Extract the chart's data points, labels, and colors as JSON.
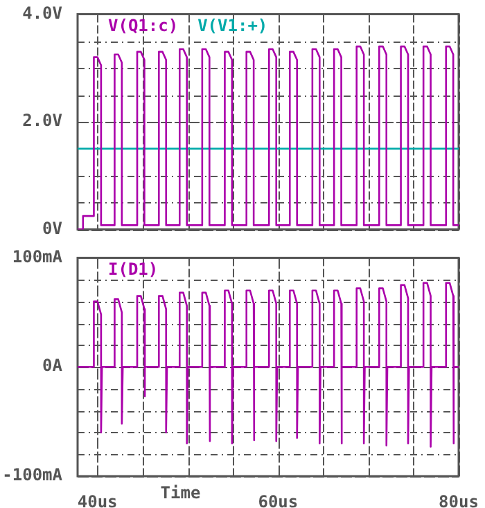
{
  "chart_data": [
    {
      "type": "line",
      "xlim": [
        37.8,
        80
      ],
      "xticks": [
        {
          "value": 40,
          "label": null
        },
        {
          "value": 45,
          "label": null
        },
        {
          "value": 50,
          "label": null
        },
        {
          "value": 55,
          "label": null
        },
        {
          "value": 60,
          "label": null
        },
        {
          "value": 65,
          "label": null
        },
        {
          "value": 70,
          "label": null
        },
        {
          "value": 75,
          "label": null
        },
        {
          "value": 80,
          "label": null
        }
      ],
      "ylim": [
        0,
        4
      ],
      "yticks": [
        {
          "value": 0,
          "label": "0V"
        },
        {
          "value": 0.5,
          "label": null
        },
        {
          "value": 1,
          "label": null
        },
        {
          "value": 1.5,
          "label": null
        },
        {
          "value": 2,
          "label": "2.0V"
        },
        {
          "value": 2.5,
          "label": null
        },
        {
          "value": 3,
          "label": null
        },
        {
          "value": 3.5,
          "label": null
        },
        {
          "value": 4,
          "label": "4.0V"
        }
      ],
      "grid": true,
      "legend": "top left",
      "tick_labels": "y",
      "line_style": "solid",
      "series": [
        {
          "name": "V(Q1:c)",
          "color": "#aa00aa",
          "x": [
            37.8,
            38.4,
            38.4,
            39.6,
            39.6,
            40.0,
            40.4,
            40.4,
            41.9,
            41.9,
            42.3,
            42.7,
            42.7,
            44.4,
            44.4,
            44.8,
            45.2,
            45.2,
            46.8,
            46.8,
            47.2,
            47.6,
            47.6,
            49.1,
            49.1,
            49.5,
            49.9,
            49.9,
            51.6,
            51.6,
            52.0,
            52.4,
            52.4,
            54.1,
            54.1,
            54.5,
            54.9,
            54.9,
            56.5,
            56.5,
            56.9,
            57.3,
            57.3,
            59.0,
            59.0,
            59.4,
            59.8,
            59.8,
            61.3,
            61.3,
            61.7,
            62.1,
            62.1,
            63.8,
            63.8,
            64.2,
            64.6,
            64.6,
            66.2,
            66.2,
            66.6,
            67.0,
            67.0,
            68.7,
            68.7,
            69.1,
            69.5,
            69.5,
            71.2,
            71.2,
            71.6,
            72.0,
            72.0,
            73.6,
            73.6,
            74.0,
            74.4,
            74.4,
            76.1,
            76.1,
            76.5,
            76.9,
            76.9,
            78.6,
            78.6,
            79.0,
            79.4,
            79.4,
            80
          ],
          "values": [
            0,
            0,
            0.25,
            0.25,
            3.2,
            3.2,
            3.05,
            0.08,
            0.08,
            3.25,
            3.25,
            3.1,
            0.08,
            0.08,
            3.3,
            3.3,
            3.15,
            0.08,
            0.08,
            3.3,
            3.3,
            3.15,
            0.08,
            0.08,
            3.35,
            3.35,
            3.2,
            0.08,
            0.08,
            3.35,
            3.35,
            3.2,
            0.08,
            0.08,
            3.3,
            3.3,
            3.15,
            0.08,
            0.08,
            3.3,
            3.3,
            3.15,
            0.08,
            0.08,
            3.35,
            3.35,
            3.2,
            0.08,
            0.08,
            3.3,
            3.3,
            3.15,
            0.08,
            0.08,
            3.35,
            3.35,
            3.2,
            0.08,
            0.08,
            3.35,
            3.35,
            3.2,
            0.08,
            0.08,
            3.4,
            3.4,
            3.25,
            0.08,
            0.08,
            3.4,
            3.4,
            3.25,
            0.08,
            0.08,
            3.4,
            3.4,
            3.25,
            0.08,
            0.08,
            3.4,
            3.4,
            3.25,
            0.08,
            0.08,
            3.4,
            3.4,
            3.25,
            0.08,
            0.08
          ]
        },
        {
          "name": "V(V1:+)",
          "color": "#00aaaa",
          "x": [
            37.8,
            80
          ],
          "values": [
            1.5,
            1.5
          ]
        }
      ]
    },
    {
      "type": "line",
      "xlabel": "Time",
      "xlim": [
        37.8,
        80
      ],
      "xticks": [
        {
          "value": 40,
          "label": "40us"
        },
        {
          "value": 45,
          "label": null
        },
        {
          "value": 50,
          "label": null
        },
        {
          "value": 55,
          "label": null
        },
        {
          "value": 60,
          "label": "60us"
        },
        {
          "value": 65,
          "label": null
        },
        {
          "value": 70,
          "label": null
        },
        {
          "value": 75,
          "label": null
        },
        {
          "value": 80,
          "label": "80us"
        }
      ],
      "ylim": [
        -100,
        100
      ],
      "yticks": [
        {
          "value": -100,
          "label": "-100mA"
        },
        {
          "value": -80,
          "label": null
        },
        {
          "value": -60,
          "label": null
        },
        {
          "value": -40,
          "label": null
        },
        {
          "value": -20,
          "label": null
        },
        {
          "value": 0,
          "label": "0A"
        },
        {
          "value": 20,
          "label": null
        },
        {
          "value": 40,
          "label": null
        },
        {
          "value": 60,
          "label": null
        },
        {
          "value": 80,
          "label": null
        },
        {
          "value": 100,
          "label": "100mA"
        }
      ],
      "grid": true,
      "legend": "top left",
      "line_style": "solid",
      "series": [
        {
          "name": "I(D1)",
          "color": "#aa00aa",
          "x": [
            37.8,
            39.6,
            39.6,
            40.0,
            40.4,
            40.4,
            40.5,
            41.9,
            41.9,
            42.3,
            42.7,
            42.7,
            42.8,
            44.4,
            44.4,
            44.8,
            45.2,
            45.2,
            45.3,
            46.8,
            46.8,
            47.2,
            47.6,
            47.6,
            47.7,
            49.1,
            49.1,
            49.5,
            49.9,
            49.9,
            50.0,
            51.6,
            51.6,
            52.0,
            52.4,
            52.4,
            52.5,
            54.1,
            54.1,
            54.5,
            54.9,
            54.9,
            55.0,
            56.5,
            56.5,
            56.9,
            57.3,
            57.3,
            57.4,
            59.0,
            59.0,
            59.4,
            59.8,
            59.8,
            59.9,
            61.3,
            61.3,
            61.7,
            62.1,
            62.1,
            62.2,
            63.8,
            63.8,
            64.2,
            64.6,
            64.6,
            64.7,
            66.2,
            66.2,
            66.6,
            67.0,
            67.0,
            67.1,
            68.7,
            68.7,
            69.1,
            69.5,
            69.5,
            69.6,
            71.2,
            71.2,
            71.6,
            72.0,
            72.0,
            72.1,
            73.6,
            73.6,
            74.0,
            74.4,
            74.4,
            74.5,
            76.1,
            76.1,
            76.5,
            76.9,
            76.9,
            77.0,
            78.6,
            78.6,
            79.0,
            79.4,
            79.4,
            79.5,
            80
          ],
          "values": [
            0,
            0,
            60,
            60,
            48,
            -60,
            0,
            0,
            62,
            62,
            50,
            -52,
            0,
            0,
            65,
            65,
            53,
            -27,
            0,
            0,
            65,
            65,
            53,
            -60,
            0,
            0,
            68,
            68,
            56,
            -70,
            0,
            0,
            68,
            68,
            56,
            -68,
            0,
            0,
            70,
            70,
            58,
            -70,
            0,
            0,
            70,
            70,
            58,
            -67,
            0,
            0,
            70,
            70,
            58,
            -68,
            0,
            0,
            70,
            70,
            58,
            -65,
            0,
            0,
            70,
            70,
            58,
            -70,
            0,
            0,
            70,
            70,
            58,
            -70,
            0,
            0,
            72,
            72,
            60,
            -70,
            0,
            0,
            72,
            72,
            60,
            -72,
            0,
            0,
            75,
            75,
            63,
            -70,
            0,
            0,
            77,
            77,
            65,
            -73,
            0,
            0,
            77,
            77,
            65,
            -70,
            0,
            0
          ]
        }
      ]
    }
  ]
}
